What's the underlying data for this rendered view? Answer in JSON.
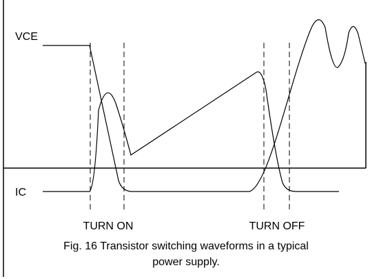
{
  "labels": {
    "vce": "VCE",
    "ic": "IC",
    "turn_on": "TURN ON",
    "turn_off": "TURN OFF"
  },
  "caption": {
    "line1": "Fig. 16  Transistor switching waveforms in a typical",
    "line2": "power supply."
  }
}
